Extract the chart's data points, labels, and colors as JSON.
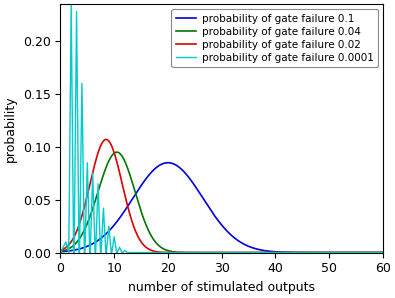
{
  "title": "",
  "xlabel": "number of stimulated outputs",
  "ylabel": "probability",
  "xlim": [
    0,
    60
  ],
  "ylim": [
    0,
    0.235
  ],
  "bundle_size": 60,
  "line_colors": [
    "#0000dd",
    "#007700",
    "#dd0000",
    "#00cccc"
  ],
  "legend_labels": [
    "probability of gate failure 0.1",
    "probability of gate failure 0.04",
    "probability of gate failure 0.02",
    "probability of gate failure 0.0001"
  ],
  "yticks": [
    0,
    0.05,
    0.1,
    0.15,
    0.2
  ],
  "xticks": [
    0,
    10,
    20,
    30,
    40,
    50,
    60
  ],
  "background_color": "#ffffff",
  "legend_fontsize": 7.5,
  "axis_label_fontsize": 9,
  "tick_fontsize": 9,
  "blue_params": [
    20.0,
    6.5,
    0.085
  ],
  "green_params": [
    10.5,
    3.5,
    0.095
  ],
  "red_params": [
    8.5,
    3.0,
    0.107
  ],
  "cyan_spikes_x": [
    2,
    3,
    4,
    5,
    6,
    7,
    8,
    9,
    10,
    11,
    12
  ],
  "cyan_spikes_y": [
    0.235,
    0.228,
    0.16,
    0.085,
    0.075,
    0.065,
    0.042,
    0.025,
    0.015,
    0.005,
    0.002
  ]
}
